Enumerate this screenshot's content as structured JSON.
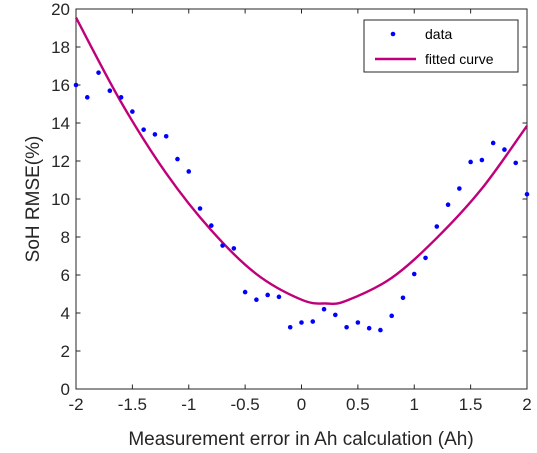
{
  "chart_data": {
    "type": "scatter",
    "xlabel": "Measurement error in Ah calculation (Ah)",
    "ylabel": "SoH RMSE(%)",
    "xlim": [
      -2,
      2
    ],
    "ylim": [
      0,
      20
    ],
    "xticks": [
      -2,
      -1.5,
      -1,
      -0.5,
      0,
      0.5,
      1,
      1.5,
      2
    ],
    "xtick_labels": [
      "-2",
      "-1.5",
      "-1",
      "-0.5",
      "0",
      "0.5",
      "1",
      "1.5",
      "2"
    ],
    "yticks": [
      0,
      2,
      4,
      6,
      8,
      10,
      12,
      14,
      16,
      18,
      20
    ],
    "ytick_labels": [
      "0",
      "2",
      "4",
      "6",
      "8",
      "10",
      "12",
      "14",
      "16",
      "18",
      "20"
    ],
    "grid": false,
    "legend": {
      "position": "top-right",
      "entries": [
        "data",
        "fitted curve"
      ]
    },
    "series": [
      {
        "name": "data",
        "kind": "scatter",
        "color": "#0000ff",
        "x": [
          -2.0,
          -1.9,
          -1.8,
          -1.7,
          -1.6,
          -1.5,
          -1.4,
          -1.3,
          -1.2,
          -1.1,
          -1.0,
          -0.9,
          -0.8,
          -0.7,
          -0.6,
          -0.5,
          -0.4,
          -0.3,
          -0.2,
          -0.1,
          0.0,
          0.1,
          0.2,
          0.3,
          0.4,
          0.5,
          0.6,
          0.7,
          0.8,
          0.9,
          1.0,
          1.1,
          1.2,
          1.3,
          1.4,
          1.5,
          1.6,
          1.7,
          1.8,
          1.9,
          2.0
        ],
        "y": [
          16.0,
          15.35,
          16.65,
          15.7,
          15.35,
          14.6,
          13.65,
          13.4,
          13.3,
          12.1,
          11.45,
          9.5,
          8.6,
          7.55,
          7.4,
          5.1,
          4.7,
          4.95,
          4.85,
          3.25,
          3.5,
          3.55,
          4.2,
          3.9,
          3.25,
          3.5,
          3.2,
          3.1,
          3.85,
          4.8,
          6.05,
          6.9,
          8.55,
          9.7,
          10.55,
          11.95,
          12.05,
          12.95,
          12.6,
          11.9,
          10.25
        ]
      },
      {
        "name": "fitted curve",
        "kind": "line",
        "color": "#c0007a",
        "x": [
          -2.0,
          -1.6,
          -1.2,
          -0.8,
          -0.4,
          0.0,
          0.22,
          0.4,
          0.8,
          1.2,
          1.6,
          2.0
        ],
        "y": [
          19.55,
          15.1,
          11.35,
          8.35,
          6.05,
          4.7,
          4.5,
          4.65,
          5.85,
          7.95,
          10.55,
          13.85
        ]
      }
    ]
  }
}
